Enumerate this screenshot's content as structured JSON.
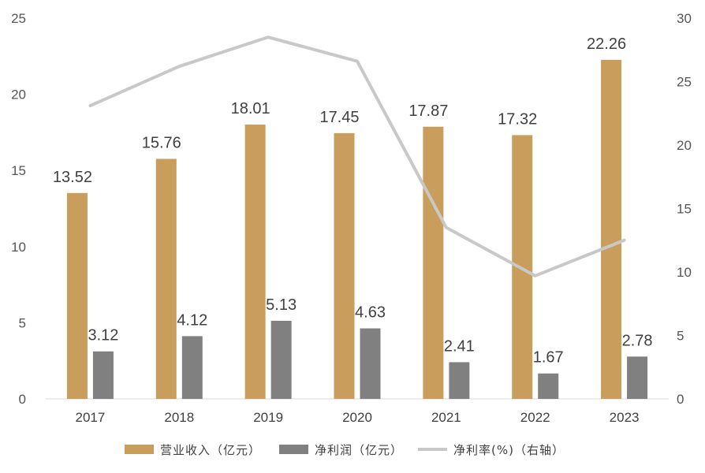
{
  "chart_data": {
    "type": "bar",
    "categories": [
      "2017",
      "2018",
      "2019",
      "2020",
      "2021",
      "2022",
      "2023"
    ],
    "series": [
      {
        "name": "营业收入（亿元）",
        "type": "bar",
        "axis": "left",
        "color": "#C99D5C",
        "values": [
          13.52,
          15.76,
          18.01,
          17.45,
          17.87,
          17.32,
          22.26
        ]
      },
      {
        "name": "净利润（亿元）",
        "type": "bar",
        "axis": "left",
        "color": "#808080",
        "values": [
          3.12,
          4.12,
          5.13,
          4.63,
          2.41,
          1.67,
          2.78
        ]
      },
      {
        "name": "净利率(%)（右轴）",
        "type": "line",
        "axis": "right",
        "color": "#C8C8C8",
        "values": [
          23.1,
          26.2,
          28.5,
          26.6,
          13.5,
          9.7,
          12.5
        ]
      }
    ],
    "y_left": {
      "range": [
        0,
        25
      ],
      "ticks": [
        "0",
        "5",
        "10",
        "15",
        "20",
        "25"
      ]
    },
    "y_right": {
      "range": [
        0,
        30
      ],
      "ticks": [
        "0",
        "5",
        "10",
        "15",
        "20",
        "25",
        "30"
      ]
    },
    "grid": false,
    "legend_position": "bottom"
  }
}
